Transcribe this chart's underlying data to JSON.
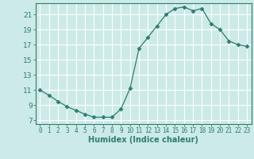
{
  "x": [
    0,
    1,
    2,
    3,
    4,
    5,
    6,
    7,
    8,
    9,
    10,
    11,
    12,
    13,
    14,
    15,
    16,
    17,
    18,
    19,
    20,
    21,
    22,
    23
  ],
  "y": [
    11,
    10.3,
    9.5,
    8.8,
    8.3,
    7.8,
    7.4,
    7.4,
    7.4,
    8.5,
    11.2,
    16.5,
    18,
    19.5,
    21,
    21.8,
    22,
    21.5,
    21.8,
    19.8,
    19,
    17.5,
    17,
    16.8
  ],
  "line_color": "#2e7d6e",
  "marker": "D",
  "marker_size": 2.5,
  "background_color": "#cceae8",
  "grid_color": "#ffffff",
  "xlabel": "Humidex (Indice chaleur)",
  "xlim": [
    -0.5,
    23.5
  ],
  "ylim": [
    6.5,
    22.5
  ],
  "yticks": [
    7,
    9,
    11,
    13,
    15,
    17,
    19,
    21
  ],
  "xticks": [
    0,
    1,
    2,
    3,
    4,
    5,
    6,
    7,
    8,
    9,
    10,
    11,
    12,
    13,
    14,
    15,
    16,
    17,
    18,
    19,
    20,
    21,
    22,
    23
  ],
  "xtick_labels": [
    "0",
    "1",
    "2",
    "3",
    "4",
    "5",
    "6",
    "7",
    "8",
    "9",
    "10",
    "11",
    "12",
    "13",
    "14",
    "15",
    "16",
    "17",
    "18",
    "19",
    "20",
    "21",
    "22",
    "23"
  ],
  "font_color": "#2e7d6e",
  "axis_color": "#2e7d6e",
  "xlabel_fontsize": 7,
  "tick_fontsize": 5.5,
  "ytick_fontsize": 6.5
}
